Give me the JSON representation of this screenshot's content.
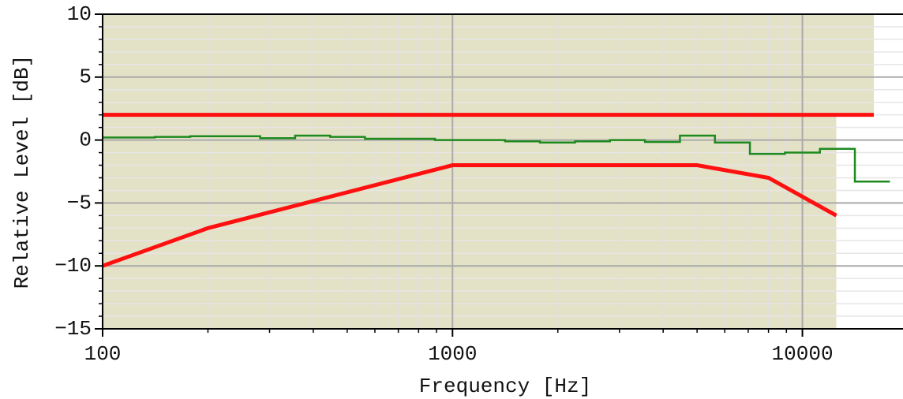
{
  "chart_data": {
    "type": "line",
    "x_label": "Frequency [Hz]",
    "y_label": "Relative Level [dB]",
    "xscale": "log",
    "xlim": [
      100,
      20000
    ],
    "ylim": [
      -15,
      10
    ],
    "xticks": [
      100,
      1000,
      10000
    ],
    "xminorticks": [
      200,
      300,
      400,
      500,
      600,
      700,
      800,
      900,
      2000,
      3000,
      4000,
      5000,
      6000,
      7000,
      8000,
      9000
    ],
    "yticks": [
      {
        "value": -15,
        "label": "−15"
      },
      {
        "value": -10,
        "label": "−10"
      },
      {
        "value": -5,
        "label": "−5"
      },
      0,
      5,
      10
    ],
    "yminorticks": [
      -14,
      -13,
      -12,
      -11,
      -9,
      -8,
      -7,
      -6,
      -4,
      -3,
      -2,
      -1,
      1,
      2,
      3,
      4,
      6,
      7,
      8,
      9
    ],
    "grid": true,
    "shade_color": "#e3e1c6",
    "series": [
      {
        "type": "line",
        "color": "#ff1010",
        "x": [
          100,
          16000
        ],
        "values": [
          2,
          2
        ]
      },
      {
        "type": "line",
        "color": "#ff1010",
        "x": [
          100,
          200,
          1000,
          5000,
          8000,
          12500
        ],
        "values": [
          -10,
          -7,
          -2,
          -2,
          -3,
          -6
        ]
      },
      {
        "type": "step",
        "color": "#1e8a1e",
        "bins": [
          100,
          141,
          178,
          282,
          355,
          447,
          562,
          891,
          1413,
          1778,
          2239,
          2818,
          3548,
          4467,
          5623,
          7079,
          8913,
          11220,
          14125,
          17783
        ],
        "values": [
          0.2,
          0.25,
          0.3,
          0.15,
          0.35,
          0.25,
          0.1,
          0.0,
          -0.1,
          -0.2,
          -0.1,
          0.0,
          -0.15,
          0.35,
          -0.2,
          -1.1,
          -1.0,
          -0.7,
          -3.3
        ]
      }
    ]
  }
}
